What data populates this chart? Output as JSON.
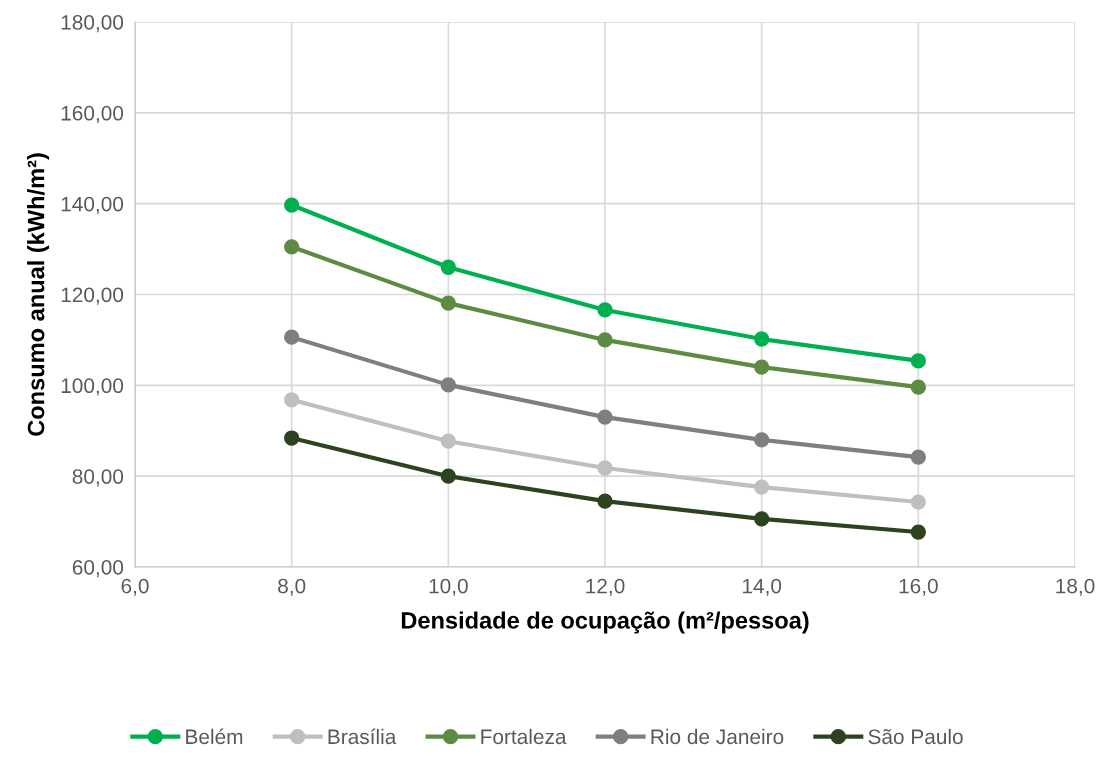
{
  "chart_data": {
    "type": "line",
    "xlabel": "Densidade de ocupação (m²/pessoa)",
    "ylabel": "Consumo anual (kWh/m²)",
    "x": [
      8,
      10,
      12,
      14,
      16
    ],
    "series": [
      {
        "name": "Belém",
        "color": "#00b050",
        "values": [
          139.7,
          126.0,
          116.6,
          110.2,
          105.4
        ]
      },
      {
        "name": "Brasília",
        "color": "#bfbfbf",
        "values": [
          96.8,
          87.7,
          81.8,
          77.6,
          74.3
        ]
      },
      {
        "name": "Fortaleza",
        "color": "#5e8b44",
        "values": [
          130.5,
          118.1,
          110.0,
          104.0,
          99.6
        ]
      },
      {
        "name": "Rio de Janeiro",
        "color": "#7f7f7f",
        "values": [
          110.6,
          100.1,
          93.0,
          88.0,
          84.2
        ]
      },
      {
        "name": "São Paulo",
        "color": "#2d4320",
        "values": [
          88.4,
          80.0,
          74.5,
          70.6,
          67.7
        ]
      }
    ],
    "xlim": [
      6,
      18
    ],
    "xticks": [
      {
        "value": 6,
        "label": "6,0"
      },
      {
        "value": 8,
        "label": "8,0"
      },
      {
        "value": 10,
        "label": "10,0"
      },
      {
        "value": 12,
        "label": "12,0"
      },
      {
        "value": 14,
        "label": "14,0"
      },
      {
        "value": 16,
        "label": "16,0"
      },
      {
        "value": 18,
        "label": "18,0"
      }
    ],
    "ylim": [
      60,
      180
    ],
    "yticks": [
      {
        "value": 60,
        "label": "60,00"
      },
      {
        "value": 80,
        "label": "80,00"
      },
      {
        "value": 100,
        "label": "100,00"
      },
      {
        "value": 120,
        "label": "120,00"
      },
      {
        "value": 140,
        "label": "140,00"
      },
      {
        "value": 160,
        "label": "160,00"
      },
      {
        "value": 180,
        "label": "180,00"
      }
    ],
    "grid": true,
    "legend": "bottom",
    "marker": "circle",
    "line_style": "solid"
  }
}
